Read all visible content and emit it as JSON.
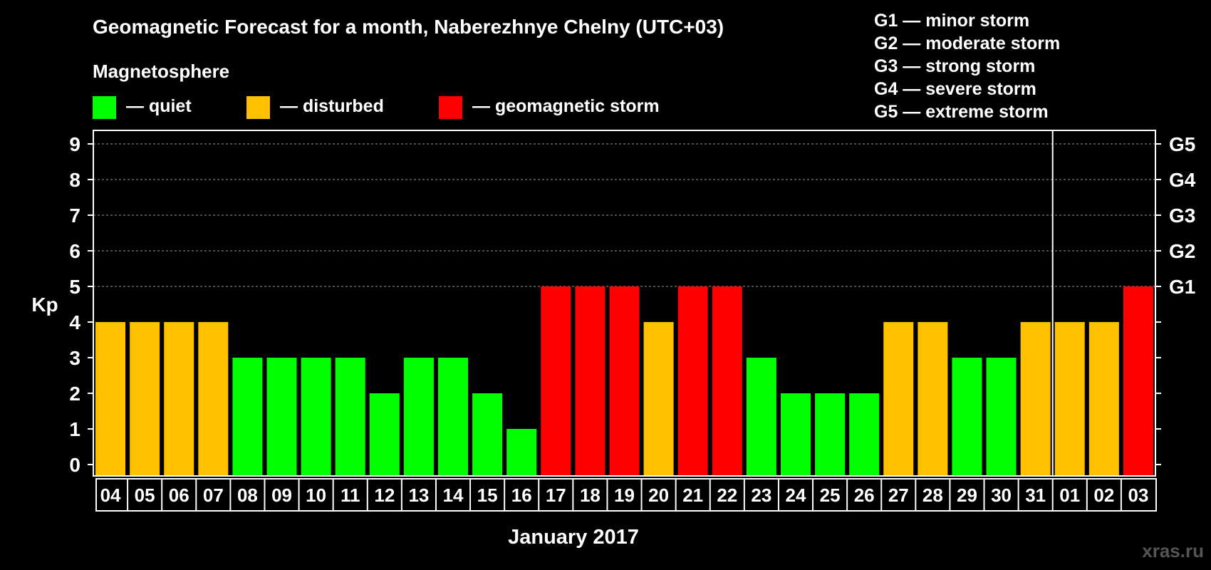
{
  "chart_data": {
    "type": "bar",
    "title": "Geomagnetic Forecast for a month, Naberezhnye Chelny (UTC+03)",
    "xlabel": "January 2017",
    "ylabel": "Kp",
    "ylim": [
      0,
      9
    ],
    "yticks": [
      "0",
      "1",
      "2",
      "3",
      "4",
      "5",
      "6",
      "7",
      "8",
      "9"
    ],
    "categories": [
      "04",
      "05",
      "06",
      "07",
      "08",
      "09",
      "10",
      "11",
      "12",
      "13",
      "14",
      "15",
      "16",
      "17",
      "18",
      "19",
      "20",
      "21",
      "22",
      "23",
      "24",
      "25",
      "26",
      "27",
      "28",
      "29",
      "30",
      "31",
      "01",
      "02",
      "03"
    ],
    "values": [
      4,
      4,
      4,
      4,
      3,
      3,
      3,
      3,
      2,
      3,
      3,
      2,
      1,
      5,
      5,
      5,
      4,
      5,
      5,
      3,
      2,
      2,
      2,
      4,
      4,
      3,
      3,
      4,
      4,
      4,
      5
    ],
    "month_divider_after": "31",
    "legend_title": "Magnetosphere",
    "legend": [
      {
        "label": "— quiet",
        "color": "#00FF00",
        "kp_max": 3
      },
      {
        "label": "— disturbed",
        "color": "#FFC000",
        "kp_max": 4
      },
      {
        "label": "— geomagnetic storm",
        "color": "#FF0000",
        "kp_max": 9
      }
    ],
    "storm_scale": [
      {
        "level": "G1",
        "kp": 5,
        "description": "G1 — minor storm"
      },
      {
        "level": "G2",
        "kp": 6,
        "description": "G2 — moderate storm"
      },
      {
        "level": "G3",
        "kp": 7,
        "description": "G3 — strong storm"
      },
      {
        "level": "G4",
        "kp": 8,
        "description": "G4 — severe storm"
      },
      {
        "level": "G5",
        "kp": 9,
        "description": "G5 — extreme storm"
      }
    ],
    "grid": "dashed at G levels",
    "watermark": "xras.ru"
  }
}
